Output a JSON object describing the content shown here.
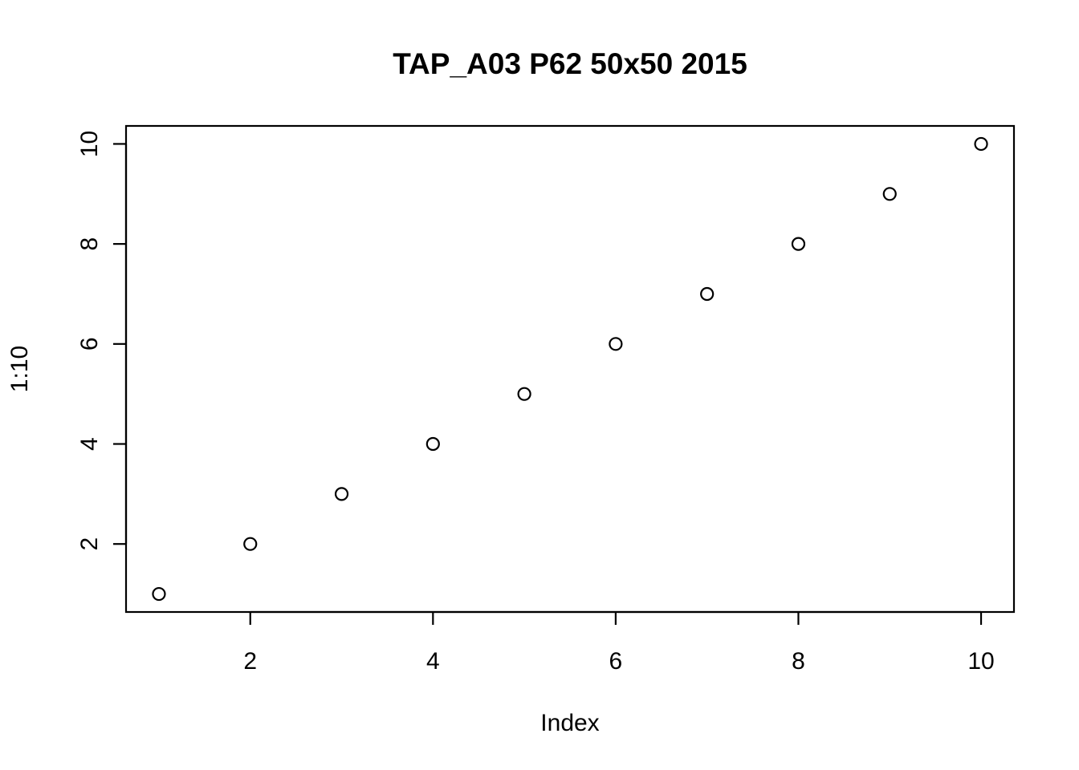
{
  "chart_data": {
    "type": "scatter",
    "title": "TAP_A03 P62 50x50 2015",
    "xlabel": "Index",
    "ylabel": "1:10",
    "x": [
      1,
      2,
      3,
      4,
      5,
      6,
      7,
      8,
      9,
      10
    ],
    "y": [
      1,
      2,
      3,
      4,
      5,
      6,
      7,
      8,
      9,
      10
    ],
    "xlim": [
      0.64,
      10.36
    ],
    "ylim": [
      0.64,
      10.36
    ],
    "x_ticks": [
      2,
      4,
      6,
      8,
      10
    ],
    "y_ticks": [
      2,
      4,
      6,
      8,
      10
    ],
    "x_tick_labels": [
      "2",
      "4",
      "6",
      "8",
      "10"
    ],
    "y_tick_labels": [
      "2",
      "4",
      "6",
      "8",
      "10"
    ],
    "grid": false,
    "legend": "none",
    "marker": "open-circle",
    "colors": {
      "points": "#000000",
      "axes": "#000000",
      "background": "#ffffff"
    }
  }
}
